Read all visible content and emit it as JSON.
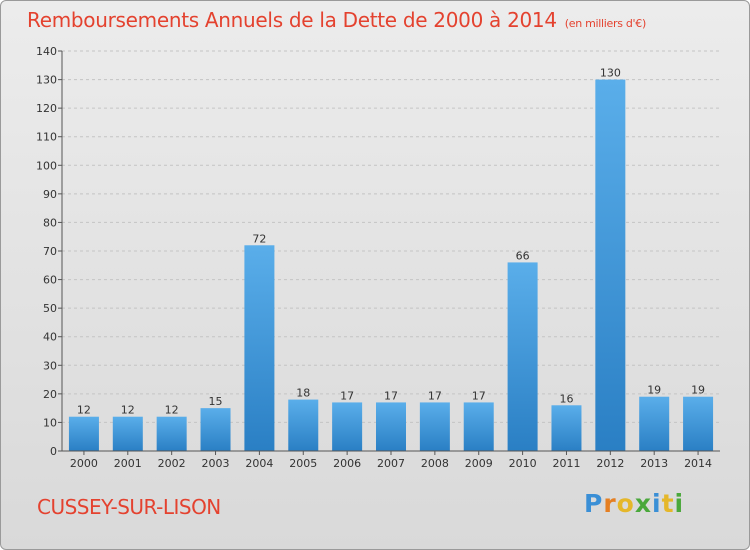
{
  "title": "Remboursements Annuels de la Dette de 2000 à 2014",
  "subtitle": "(en milliers d'€)",
  "commune": "CUSSEY-SUR-LISON",
  "logo": {
    "letters": [
      "P",
      "r",
      "o",
      "x",
      "i",
      "t",
      "i"
    ],
    "colors": [
      "#3a8fd6",
      "#e57f22",
      "#e5b72a",
      "#4aa83b",
      "#3a8fd6",
      "#e5b72a",
      "#4aa83b"
    ]
  },
  "colors": {
    "bar_top": "#5aaeea",
    "bar_bottom": "#2a7fc4",
    "title": "#e4422f"
  },
  "chart_data": {
    "type": "bar",
    "categories": [
      "2000",
      "2001",
      "2002",
      "2003",
      "2004",
      "2005",
      "2006",
      "2007",
      "2008",
      "2009",
      "2010",
      "2011",
      "2012",
      "2013",
      "2014"
    ],
    "values": [
      12,
      12,
      12,
      15,
      72,
      18,
      17,
      17,
      17,
      17,
      66,
      16,
      130,
      19,
      19
    ],
    "title": "Remboursements Annuels de la Dette de 2000 à 2014",
    "xlabel": "",
    "ylabel": "",
    "ylim": [
      0,
      140
    ],
    "yticks": [
      0,
      10,
      20,
      30,
      40,
      50,
      60,
      70,
      80,
      90,
      100,
      110,
      120,
      130,
      140
    ],
    "grid": true
  }
}
